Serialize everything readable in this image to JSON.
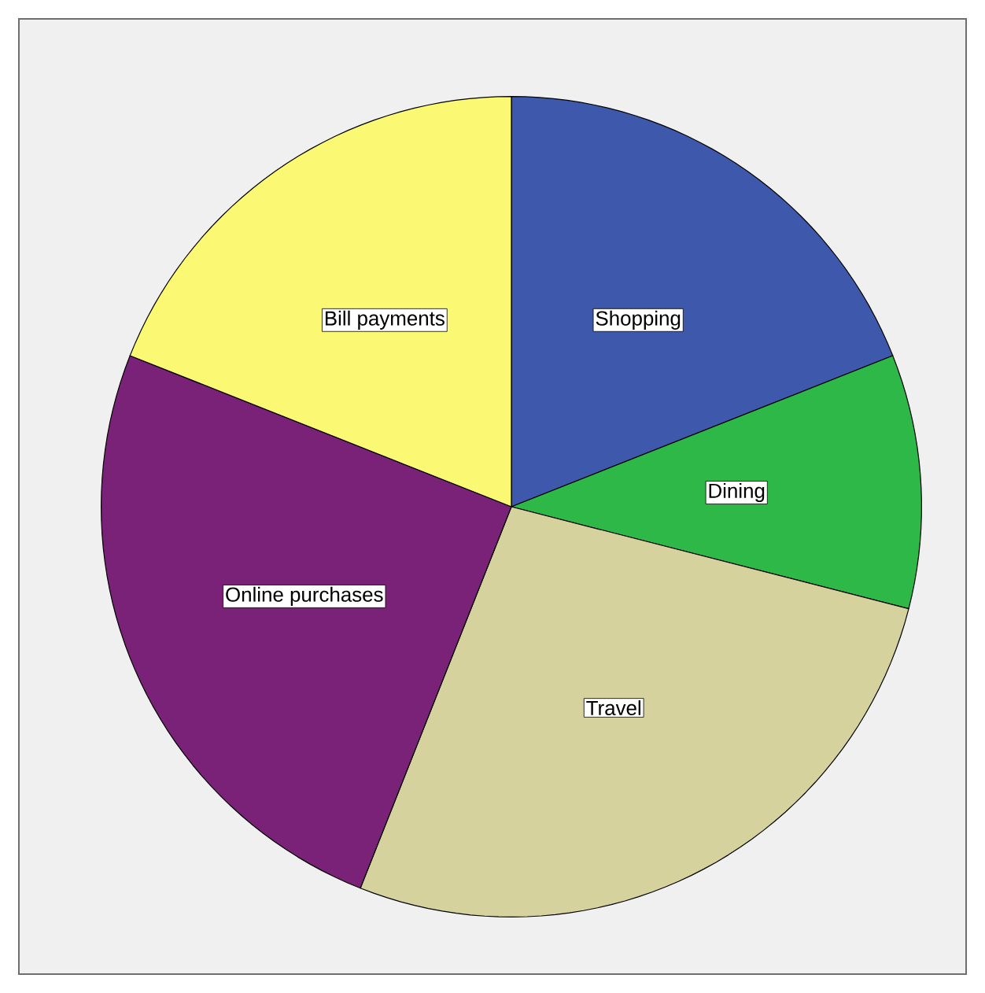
{
  "chart_data": {
    "type": "pie",
    "categories": [
      "Shopping",
      "Dining",
      "Travel",
      "Online purchases",
      "Bill payments"
    ],
    "values": [
      19,
      10,
      27,
      25,
      19
    ],
    "colors": [
      "#3e58ac",
      "#2eb848",
      "#d6d29e",
      "#7a2277",
      "#fbf873"
    ]
  }
}
